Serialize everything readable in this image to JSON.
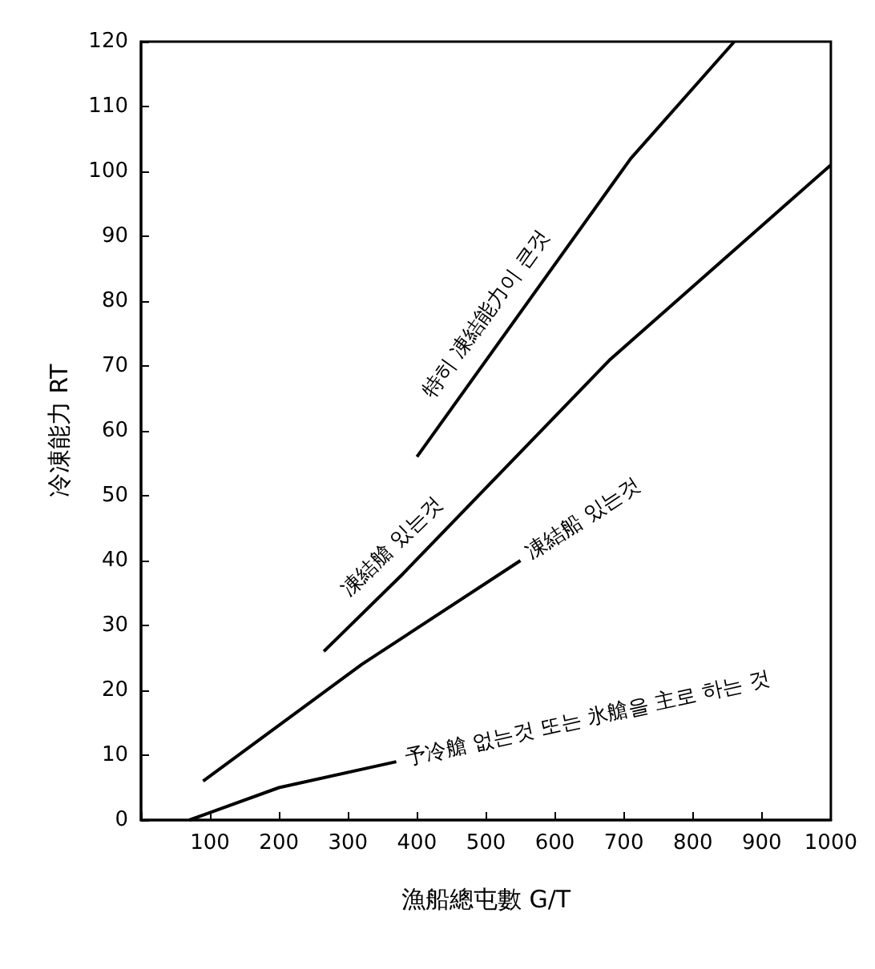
{
  "chart_data": {
    "type": "line",
    "xlabel": "漁船總屯數 G/T",
    "ylabel": "冷凍能力 RT",
    "xlim": [
      0,
      1000
    ],
    "ylim": [
      0,
      120
    ],
    "xticks": [
      {
        "value": 0,
        "label": null
      },
      100,
      200,
      300,
      400,
      500,
      600,
      700,
      800,
      900,
      1000
    ],
    "yticks": [
      0,
      10,
      20,
      30,
      40,
      50,
      60,
      70,
      80,
      90,
      100,
      110,
      120
    ],
    "grid": false,
    "marker": "none",
    "line_style": "solid",
    "series": [
      {
        "color": "#000000",
        "x": [
          400,
          710,
          860
        ],
        "values": [
          56,
          102,
          120
        ]
      },
      {
        "color": "#000000",
        "x": [
          265,
          380,
          680,
          1000
        ],
        "values": [
          26,
          38,
          71,
          101
        ]
      },
      {
        "color": "#000000",
        "x": [
          90,
          320,
          550
        ],
        "values": [
          6,
          24,
          40
        ]
      },
      {
        "color": "#000000",
        "x": [
          70,
          200,
          370
        ],
        "values": [
          0,
          5,
          9
        ]
      }
    ],
    "annotations": [
      "特히 凍結能力이 큰것",
      "凍結艙 있는것",
      "凍結船 있는것",
      "予冷艙 없는것 또는 氷艙을 主로 하는 것"
    ]
  }
}
